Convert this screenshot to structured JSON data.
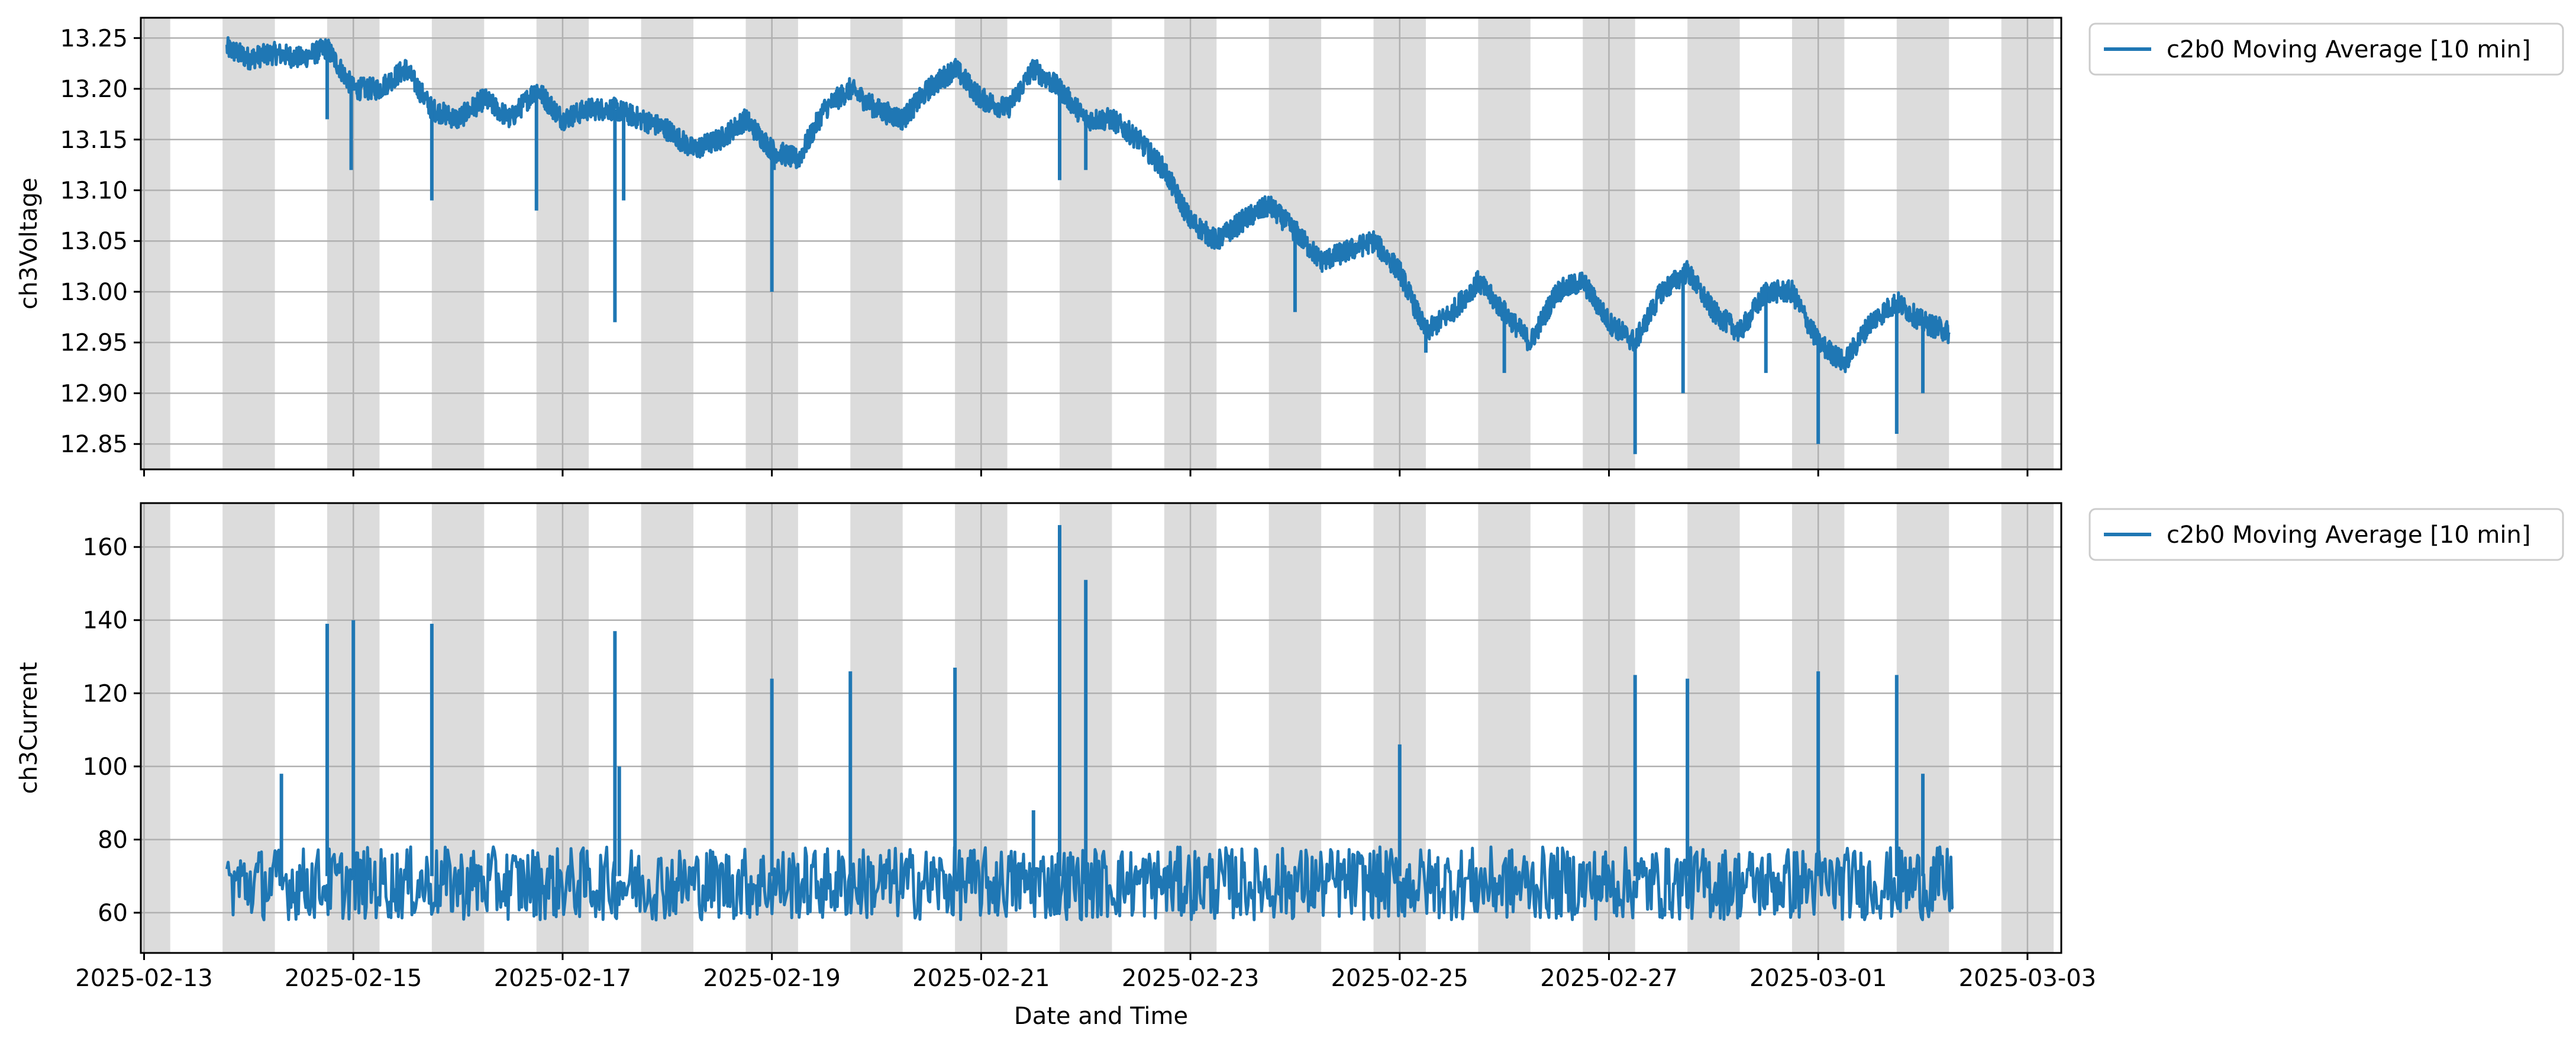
{
  "chart_data": [
    {
      "type": "line",
      "title": "",
      "xlabel": "",
      "ylabel": "ch3Voltage",
      "ylim": [
        12.825,
        13.27
      ],
      "xlim": [
        "2025-02-12T23:15:00",
        "2025-03-03T07:45:00"
      ],
      "yticks": [
        "12.85",
        "12.90",
        "12.95",
        "13.00",
        "13.05",
        "13.10",
        "13.15",
        "13.20",
        "13.25"
      ],
      "grid": true,
      "legend_position": "outside-upper-right",
      "shaded_night_bands": true,
      "series": [
        {
          "name": "c2b0 Moving Average [10 min]",
          "color": "#1f77b4",
          "x": [
            "2025-02-13T19:00",
            "2025-02-14T00:00",
            "2025-02-14T06:00",
            "2025-02-14T12:00",
            "2025-02-14T18:00",
            "2025-02-15T00:00",
            "2025-02-15T06:00",
            "2025-02-15T12:00",
            "2025-02-15T18:00",
            "2025-02-16T00:00",
            "2025-02-16T06:00",
            "2025-02-16T12:00",
            "2025-02-16T18:00",
            "2025-02-17T00:00",
            "2025-02-17T06:00",
            "2025-02-17T12:00",
            "2025-02-17T18:00",
            "2025-02-18T00:00",
            "2025-02-18T06:00",
            "2025-02-18T12:00",
            "2025-02-18T18:00",
            "2025-02-19T00:00",
            "2025-02-19T06:00",
            "2025-02-19T12:00",
            "2025-02-19T18:00",
            "2025-02-20T00:00",
            "2025-02-20T06:00",
            "2025-02-20T12:00",
            "2025-02-20T18:00",
            "2025-02-21T00:00",
            "2025-02-21T06:00",
            "2025-02-21T12:00",
            "2025-02-21T18:00",
            "2025-02-22T00:00",
            "2025-02-22T06:00",
            "2025-02-22T12:00",
            "2025-02-22T18:00",
            "2025-02-23T00:00",
            "2025-02-23T06:00",
            "2025-02-23T12:00",
            "2025-02-23T18:00",
            "2025-02-24T00:00",
            "2025-02-24T06:00",
            "2025-02-24T12:00",
            "2025-02-24T18:00",
            "2025-02-25T00:00",
            "2025-02-25T06:00",
            "2025-02-25T12:00",
            "2025-02-25T18:00",
            "2025-02-26T00:00",
            "2025-02-26T06:00",
            "2025-02-26T12:00",
            "2025-02-26T18:00",
            "2025-02-27T00:00",
            "2025-02-27T06:00",
            "2025-02-27T12:00",
            "2025-02-27T18:00",
            "2025-02-28T00:00",
            "2025-02-28T06:00",
            "2025-02-28T12:00",
            "2025-02-28T18:00",
            "2025-03-01T00:00",
            "2025-03-01T06:00",
            "2025-03-01T12:00",
            "2025-03-01T18:00",
            "2025-03-02T00:00",
            "2025-03-02T06:00"
          ],
          "values": [
            13.24,
            13.23,
            13.235,
            13.23,
            13.24,
            13.2,
            13.2,
            13.22,
            13.18,
            13.17,
            13.19,
            13.17,
            13.2,
            13.17,
            13.18,
            13.18,
            13.17,
            13.16,
            13.14,
            13.15,
            13.17,
            13.14,
            13.13,
            13.18,
            13.2,
            13.18,
            13.17,
            13.2,
            13.22,
            13.19,
            13.18,
            13.22,
            13.2,
            13.17,
            13.17,
            13.15,
            13.12,
            13.07,
            13.05,
            13.07,
            13.085,
            13.06,
            13.03,
            13.04,
            13.05,
            13.02,
            12.96,
            12.98,
            13.01,
            12.98,
            12.95,
            13.0,
            13.01,
            12.97,
            12.95,
            13.0,
            13.02,
            12.98,
            12.96,
            13.0,
            13.0,
            12.95,
            12.93,
            12.97,
            12.99,
            12.97,
            12.96
          ]
        }
      ],
      "spikes": [
        {
          "x": "2025-02-14T18:00",
          "value": 13.17
        },
        {
          "x": "2025-02-14T23:30",
          "value": 13.12
        },
        {
          "x": "2025-02-15T18:00",
          "value": 13.09
        },
        {
          "x": "2025-02-16T18:00",
          "value": 13.08
        },
        {
          "x": "2025-02-17T12:00",
          "value": 12.97
        },
        {
          "x": "2025-02-17T14:00",
          "value": 13.09
        },
        {
          "x": "2025-02-19T00:00",
          "value": 13.0
        },
        {
          "x": "2025-02-19T00:30",
          "value": 13.12
        },
        {
          "x": "2025-02-21T18:00",
          "value": 13.11
        },
        {
          "x": "2025-02-22T00:00",
          "value": 13.12
        },
        {
          "x": "2025-02-24T00:00",
          "value": 12.98
        },
        {
          "x": "2025-02-25T06:00",
          "value": 12.94
        },
        {
          "x": "2025-02-26T00:00",
          "value": 12.92
        },
        {
          "x": "2025-02-27T06:00",
          "value": 12.84
        },
        {
          "x": "2025-02-27T17:00",
          "value": 12.9
        },
        {
          "x": "2025-02-28T12:00",
          "value": 12.92
        },
        {
          "x": "2025-03-01T00:00",
          "value": 12.85
        },
        {
          "x": "2025-03-01T18:00",
          "value": 12.86
        },
        {
          "x": "2025-03-02T00:00",
          "value": 12.9
        }
      ]
    },
    {
      "type": "line",
      "title": "",
      "xlabel": "Date and Time",
      "ylabel": "ch3Current",
      "ylim": [
        49,
        172
      ],
      "xlim": [
        "2025-02-12T23:15:00",
        "2025-03-03T07:45:00"
      ],
      "yticks": [
        "60",
        "80",
        "100",
        "120",
        "140",
        "160"
      ],
      "xticks": [
        "2025-02-13",
        "2025-02-15",
        "2025-02-17",
        "2025-02-19",
        "2025-02-21",
        "2025-02-23",
        "2025-02-25",
        "2025-02-27",
        "2025-03-01",
        "2025-03-03"
      ],
      "grid": true,
      "legend_position": "outside-upper-right",
      "shaded_night_bands": true,
      "series": [
        {
          "name": "c2b0 Moving Average [10 min]",
          "color": "#1f77b4",
          "baseline_range": [
            58,
            78
          ],
          "x_start": "2025-02-13T19:00",
          "x_end": "2025-03-02T07:00"
        }
      ],
      "spikes": [
        {
          "x": "2025-02-14T07:30",
          "value": 98
        },
        {
          "x": "2025-02-14T18:00",
          "value": 139
        },
        {
          "x": "2025-02-15T00:00",
          "value": 140
        },
        {
          "x": "2025-02-15T18:00",
          "value": 139
        },
        {
          "x": "2025-02-17T12:00",
          "value": 137
        },
        {
          "x": "2025-02-17T13:00",
          "value": 100
        },
        {
          "x": "2025-02-19T00:00",
          "value": 124
        },
        {
          "x": "2025-02-19T18:00",
          "value": 126
        },
        {
          "x": "2025-02-20T18:00",
          "value": 127
        },
        {
          "x": "2025-02-21T12:00",
          "value": 88
        },
        {
          "x": "2025-02-21T18:00",
          "value": 166
        },
        {
          "x": "2025-02-22T00:00",
          "value": 151
        },
        {
          "x": "2025-02-25T00:00",
          "value": 106
        },
        {
          "x": "2025-02-27T06:00",
          "value": 125
        },
        {
          "x": "2025-02-27T18:00",
          "value": 124
        },
        {
          "x": "2025-03-01T00:00",
          "value": 126
        },
        {
          "x": "2025-03-01T18:00",
          "value": 125
        },
        {
          "x": "2025-03-02T00:00",
          "value": 98
        }
      ]
    }
  ]
}
